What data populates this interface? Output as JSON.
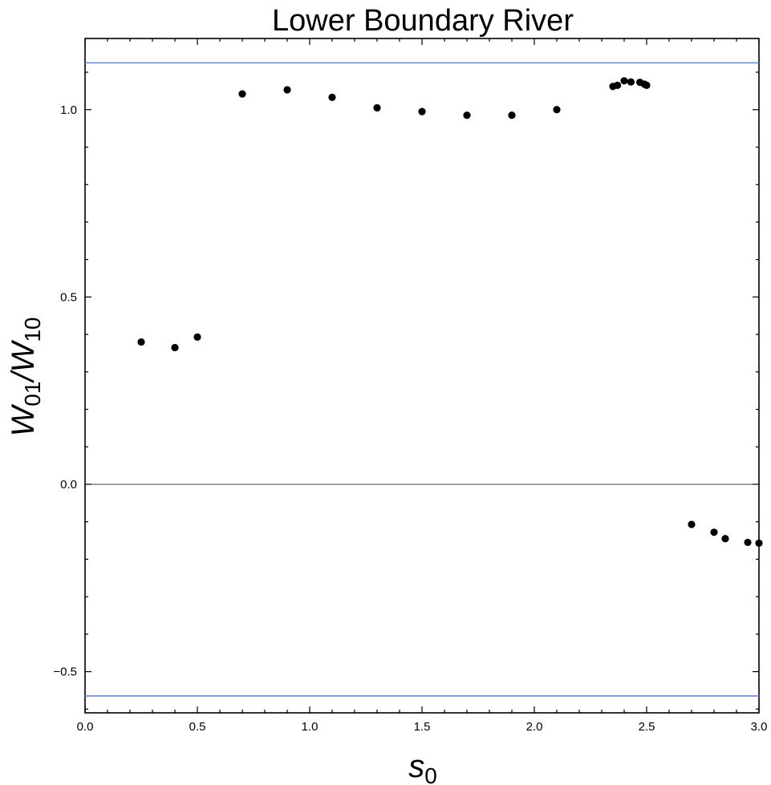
{
  "chart_data": {
    "type": "scatter",
    "title": "Lower Boundary River",
    "xlabel": {
      "base": "s",
      "sub": "0"
    },
    "ylabel": {
      "base": "W",
      "sub1": "01",
      "sep": "/",
      "base2": "W",
      "sub2": "10"
    },
    "xlim": [
      0,
      3.0
    ],
    "ylim": [
      -0.61,
      1.19
    ],
    "x_ticks": [
      {
        "value": 0.0,
        "label": "0.0"
      },
      {
        "value": 0.5,
        "label": "0.5"
      },
      {
        "value": 1.0,
        "label": "1.0"
      },
      {
        "value": 1.5,
        "label": "1.5"
      },
      {
        "value": 2.0,
        "label": "2.0"
      },
      {
        "value": 2.5,
        "label": "2.5"
      },
      {
        "value": 3.0,
        "label": "3.0"
      }
    ],
    "y_ticks": [
      {
        "value": -0.5,
        "label": "−0.5"
      },
      {
        "value": 0.0,
        "label": "0.0"
      },
      {
        "value": 0.5,
        "label": "0.5"
      },
      {
        "value": 1.0,
        "label": "1.0"
      }
    ],
    "grid": false,
    "reference_lines": [
      {
        "y": 1.125,
        "color": "#6b86c9"
      },
      {
        "y": -0.565,
        "color": "#6b86c9"
      },
      {
        "y": 0.0,
        "color": "#000000"
      }
    ],
    "points_color": "#000000",
    "points": [
      {
        "x": 0.25,
        "y": 0.38
      },
      {
        "x": 0.4,
        "y": 0.365
      },
      {
        "x": 0.5,
        "y": 0.393
      },
      {
        "x": 0.7,
        "y": 1.042
      },
      {
        "x": 0.9,
        "y": 1.053
      },
      {
        "x": 1.1,
        "y": 1.033
      },
      {
        "x": 1.3,
        "y": 1.005
      },
      {
        "x": 1.5,
        "y": 0.995
      },
      {
        "x": 1.7,
        "y": 0.985
      },
      {
        "x": 1.9,
        "y": 0.985
      },
      {
        "x": 2.1,
        "y": 1.0
      },
      {
        "x": 2.35,
        "y": 1.062
      },
      {
        "x": 2.37,
        "y": 1.065
      },
      {
        "x": 2.4,
        "y": 1.077
      },
      {
        "x": 2.43,
        "y": 1.074
      },
      {
        "x": 2.47,
        "y": 1.073
      },
      {
        "x": 2.49,
        "y": 1.068
      },
      {
        "x": 2.5,
        "y": 1.065
      },
      {
        "x": 2.7,
        "y": -0.107
      },
      {
        "x": 2.8,
        "y": -0.128
      },
      {
        "x": 2.85,
        "y": -0.145
      },
      {
        "x": 2.95,
        "y": -0.155
      },
      {
        "x": 3.0,
        "y": -0.157
      }
    ]
  }
}
